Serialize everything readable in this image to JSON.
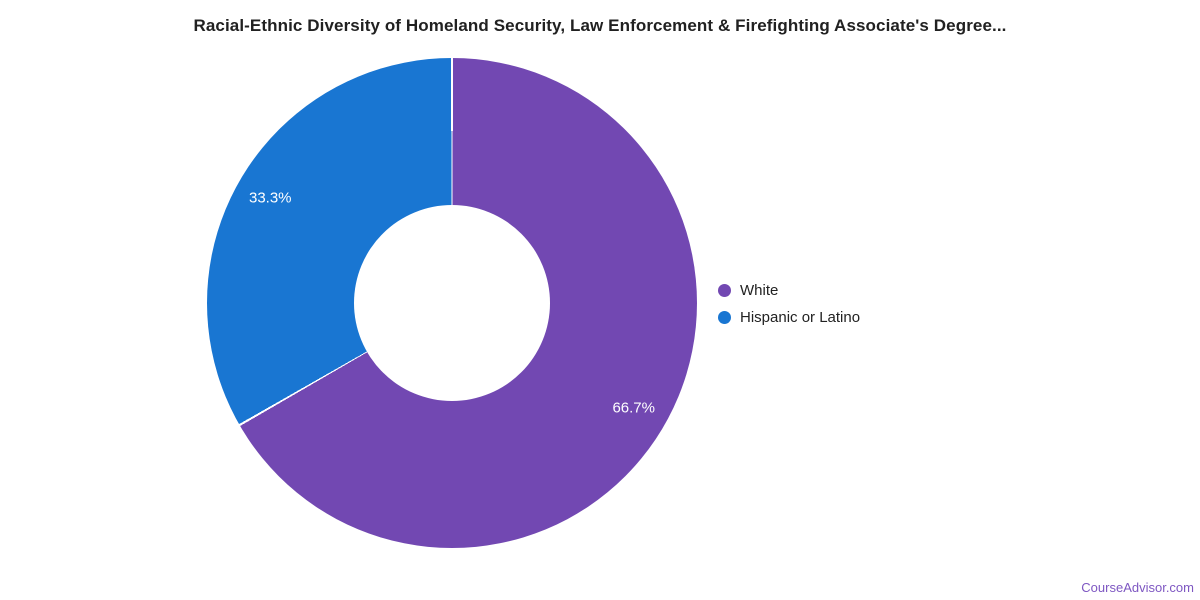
{
  "title": {
    "text": "Racial-Ethnic Diversity of Homeland Security, Law Enforcement & Firefighting Associate's Degree..."
  },
  "chart_data": {
    "type": "pie",
    "donut": true,
    "title": "Racial-Ethnic Diversity of Homeland Security, Law Enforcement & Firefighting Associate's Degree...",
    "categories": [
      "White",
      "Hispanic or Latino"
    ],
    "values": [
      66.7,
      33.3
    ],
    "slices": [
      {
        "name": "White",
        "value": 66.7,
        "label": "66.7%",
        "color": "#7248B2"
      },
      {
        "name": "Hispanic or Latino",
        "value": 33.3,
        "label": "33.3%",
        "color": "#1976D2"
      }
    ],
    "start_angle_deg": 0,
    "direction": "clockwise",
    "inner_radius_ratio": 0.4,
    "label_radius_ratio": 0.857,
    "label_color": "#ffffff",
    "separator_color": "#ffffff",
    "legend_position": "right",
    "background": "#ffffff"
  },
  "footer": {
    "link_text": "CourseAdvisor.com",
    "link_color": "#7E57C2"
  }
}
